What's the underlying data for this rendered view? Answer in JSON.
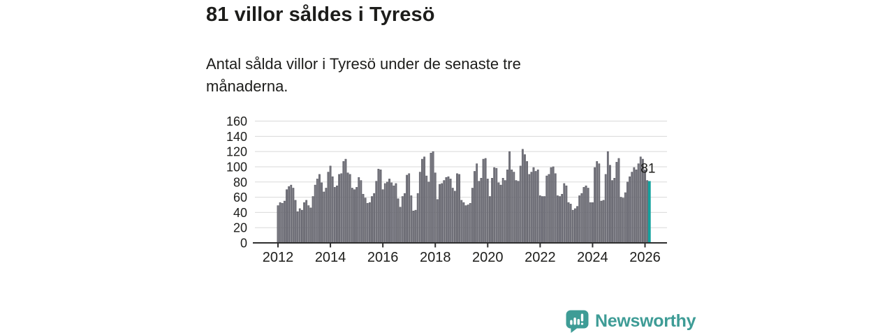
{
  "header": {
    "title": "81 villor såldes i Tyresö",
    "subtitle_line1": "Antal sålda villor i Tyresö under de senaste tre",
    "subtitle_line2": "månaderna."
  },
  "chart_data": {
    "type": "bar",
    "description": "Antal sålda villor i Tyresö under de senaste tre månaderna (rullande 3-månaderssumma per månad)",
    "x_start_year": 2012,
    "months_per_bar": 1,
    "values": [
      49,
      53,
      52,
      55,
      70,
      74,
      76,
      72,
      56,
      41,
      45,
      43,
      53,
      56,
      49,
      46,
      61,
      76,
      84,
      90,
      79,
      67,
      72,
      93,
      101,
      87,
      73,
      75,
      90,
      91,
      107,
      110,
      92,
      90,
      72,
      70,
      73,
      86,
      82,
      64,
      59,
      52,
      53,
      61,
      65,
      81,
      97,
      96,
      70,
      78,
      80,
      84,
      79,
      75,
      78,
      58,
      47,
      61,
      65,
      89,
      91,
      62,
      42,
      43,
      65,
      93,
      110,
      113,
      88,
      80,
      118,
      120,
      92,
      57,
      77,
      78,
      82,
      86,
      87,
      84,
      72,
      68,
      91,
      90,
      56,
      53,
      49,
      50,
      52,
      72,
      94,
      104,
      81,
      85,
      110,
      111,
      84,
      61,
      85,
      99,
      98,
      79,
      76,
      85,
      82,
      96,
      120,
      96,
      93,
      82,
      81,
      101,
      123,
      116,
      107,
      90,
      93,
      99,
      94,
      96,
      62,
      61,
      61,
      88,
      90,
      99,
      100,
      91,
      62,
      61,
      64,
      78,
      75,
      53,
      51,
      43,
      45,
      48,
      62,
      65,
      73,
      75,
      72,
      53,
      53,
      99,
      107,
      104,
      55,
      56,
      90,
      120,
      102,
      82,
      85,
      106,
      111,
      60,
      59,
      66,
      80,
      87,
      93,
      99,
      96,
      104,
      113,
      110,
      96,
      82,
      81
    ],
    "highlight": {
      "index_from_end": 1,
      "value": 81,
      "label": "81",
      "color": "#12A29E"
    },
    "bar_color": "#76767E",
    "bar_stroke": "#50505A",
    "xticks": [
      2012,
      2014,
      2016,
      2018,
      2020,
      2022,
      2024,
      2026
    ],
    "yticks": [
      0,
      20,
      40,
      60,
      80,
      100,
      120,
      140,
      160
    ],
    "ylim": [
      0,
      160
    ],
    "grid": true,
    "grid_color": "#D9D9D9",
    "axis_color": "#2F2F2F",
    "tick_label_color": "#1D1D1B",
    "legend": "none"
  },
  "branding": {
    "name": "Newsworthy",
    "color": "#3E9C96"
  }
}
